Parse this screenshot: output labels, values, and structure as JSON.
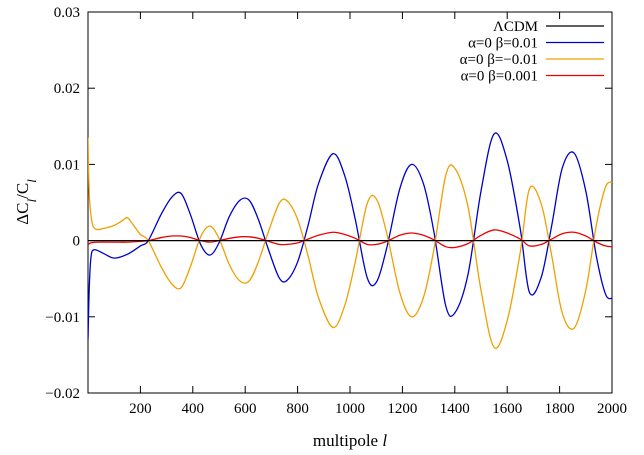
{
  "chart_data": {
    "type": "line",
    "xlabel": "multipole l",
    "ylabel": "ΔC_l/C_l",
    "xlim": [
      0,
      2000
    ],
    "ylim": [
      -0.02,
      0.03
    ],
    "x_ticks": [
      200,
      400,
      600,
      800,
      1000,
      1200,
      1400,
      1600,
      1800,
      2000
    ],
    "x_tick_labels": [
      "200",
      "400",
      "600",
      "800",
      "1000",
      "1200",
      "1400",
      "1600",
      "1800",
      "2000"
    ],
    "y_ticks": [
      -0.02,
      -0.01,
      0,
      0.01,
      0.02,
      0.03
    ],
    "y_tick_labels": [
      "−0.02",
      "−0.01",
      "0",
      "0.01",
      "0.02",
      "0.03"
    ],
    "grid": false,
    "legend_position": "top-right",
    "series": [
      {
        "name": "ΛCDM",
        "color": "#000000",
        "x": [
          0,
          2000
        ],
        "y": [
          0,
          0
        ]
      },
      {
        "name": "α=0 β=0.01",
        "color": "#0000cc",
        "x": [
          0,
          5,
          12,
          25,
          60,
          100,
          150,
          200,
          230,
          280,
          320,
          355,
          390,
          430,
          465,
          500,
          540,
          580,
          615,
          650,
          690,
          730,
          760,
          800,
          840,
          880,
          935,
          980,
          1020,
          1065,
          1100,
          1140,
          1190,
          1235,
          1280,
          1320,
          1365,
          1400,
          1450,
          1500,
          1550,
          1600,
          1650,
          1685,
          1730,
          1770,
          1810,
          1855,
          1900,
          1940,
          1975,
          2000
        ],
        "y": [
          -0.013,
          -0.006,
          -0.002,
          -0.0012,
          -0.0017,
          -0.0023,
          -0.0018,
          -0.0007,
          0,
          0.0035,
          0.0057,
          0.0062,
          0.0035,
          -0.0005,
          -0.0019,
          -0.0003,
          0.0032,
          0.0053,
          0.0053,
          0.0028,
          -0.0013,
          -0.0049,
          -0.0052,
          -0.0028,
          0.002,
          0.0075,
          0.0114,
          0.0085,
          0.0028,
          -0.0048,
          -0.0055,
          -0.001,
          0.0068,
          0.01,
          0.0075,
          0.0012,
          -0.0085,
          -0.0095,
          -0.0045,
          0.0065,
          0.014,
          0.0105,
          0.0015,
          -0.0068,
          -0.0048,
          0.002,
          0.0095,
          0.0115,
          0.0065,
          -0.002,
          -0.007,
          -0.0076
        ]
      },
      {
        "name": "α=0 β=−0.01",
        "color": "#f0a000",
        "x": [
          0,
          5,
          15,
          30,
          60,
          100,
          130,
          150,
          170,
          200,
          230,
          280,
          320,
          355,
          390,
          430,
          465,
          500,
          540,
          580,
          615,
          650,
          690,
          730,
          760,
          800,
          840,
          880,
          935,
          980,
          1020,
          1065,
          1100,
          1140,
          1190,
          1235,
          1280,
          1320,
          1365,
          1400,
          1450,
          1500,
          1550,
          1600,
          1650,
          1685,
          1730,
          1770,
          1810,
          1855,
          1900,
          1940,
          1975,
          2000
        ],
        "y": [
          0.0135,
          0.006,
          0.0025,
          0.0015,
          0.0016,
          0.002,
          0.0026,
          0.003,
          0.0022,
          0.0008,
          0,
          -0.0035,
          -0.0057,
          -0.0062,
          -0.0035,
          0.0005,
          0.0019,
          0.0003,
          -0.0032,
          -0.0053,
          -0.0053,
          -0.0028,
          0.0013,
          0.0049,
          0.0052,
          0.0028,
          -0.002,
          -0.0075,
          -0.0114,
          -0.0085,
          -0.0028,
          0.0048,
          0.0055,
          0.001,
          -0.0068,
          -0.01,
          -0.0075,
          -0.0012,
          0.0085,
          0.0095,
          0.0045,
          -0.0065,
          -0.014,
          -0.0105,
          -0.0015,
          0.0068,
          0.0048,
          -0.002,
          -0.0095,
          -0.0115,
          -0.0065,
          0.002,
          0.007,
          0.0077
        ]
      },
      {
        "name": "α=0 β=0.001",
        "color": "#ee0000",
        "x": [
          0,
          10,
          40,
          100,
          150,
          200,
          230,
          280,
          320,
          355,
          390,
          430,
          465,
          500,
          540,
          580,
          615,
          650,
          690,
          730,
          760,
          800,
          840,
          880,
          935,
          980,
          1020,
          1065,
          1100,
          1140,
          1190,
          1235,
          1280,
          1320,
          1365,
          1400,
          1450,
          1500,
          1550,
          1600,
          1650,
          1685,
          1730,
          1770,
          1810,
          1855,
          1900,
          1940,
          1975,
          2000
        ],
        "y": [
          -0.0006,
          -0.0003,
          -0.0002,
          -0.0002,
          -0.0002,
          -0.0001,
          0,
          0.0004,
          0.0006,
          0.0006,
          0.0004,
          0,
          -0.0002,
          0,
          0.0003,
          0.0005,
          0.0005,
          0.0003,
          -0.0001,
          -0.0005,
          -0.0005,
          -0.0003,
          0.0002,
          0.0007,
          0.0011,
          0.0008,
          0.0003,
          -0.0005,
          -0.0005,
          -0.0001,
          0.0007,
          0.001,
          0.0007,
          0.0001,
          -0.0008,
          -0.0009,
          -0.0004,
          0.0007,
          0.0014,
          0.001,
          0.0002,
          -0.0007,
          -0.0005,
          0.0002,
          0.0009,
          0.0011,
          0.0006,
          -0.0002,
          -0.0007,
          -0.0008
        ]
      }
    ]
  }
}
